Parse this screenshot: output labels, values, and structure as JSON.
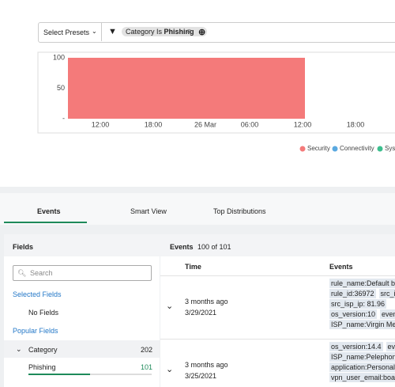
{
  "toolbar": {
    "presets": "Select Presets",
    "filter_key": "Category Is",
    "filter_value": "Phishing"
  },
  "chart_data": {
    "type": "bar",
    "series": [
      {
        "name": "Security",
        "color": "#f47a7a",
        "values": [
          100
        ]
      },
      {
        "name": "Connectivity",
        "color": "#5aa9e0",
        "values": [
          null
        ]
      },
      {
        "name": "Sys",
        "color": "#3cbf8e",
        "values": [
          null
        ]
      }
    ],
    "ylim": [
      0,
      100
    ],
    "yticks": [
      {
        "value": 0,
        "label": "-"
      },
      50,
      100
    ],
    "xticks": [
      "12:00",
      "18:00",
      "26 Mar",
      "06:00",
      "12:00",
      "18:00"
    ]
  },
  "tabs": [
    "Events",
    "Smart View",
    "Top Distributions"
  ],
  "fields": {
    "title": "Fields",
    "search": "Search",
    "selected": "Selected Fields",
    "none": "No Fields",
    "popular": "Popular Fields",
    "group": {
      "name": "Category",
      "count": 202
    },
    "item": {
      "name": "Phishing",
      "count": 101
    }
  },
  "events": {
    "title": "Events",
    "count": "100 of 101",
    "columns": [
      "Time",
      "Events"
    ],
    "rows": [
      {
        "ago": "3 months ago",
        "date": "3/29/2021",
        "tags": [
          [
            "rule_name:Default bl"
          ],
          [
            "rule_id:36972",
            "src_is"
          ],
          [
            "src_isp_ip: 81.96"
          ],
          [
            "os_version:10",
            "event_"
          ],
          [
            "ISP_name:Virgin Med"
          ]
        ]
      },
      {
        "ago": "3 months ago",
        "date": "3/25/2021",
        "tags": [
          [
            "os_version:14.4",
            "even"
          ],
          [
            "ISP_name:Pelephone"
          ],
          [
            "application:Personal"
          ],
          [
            "vpn_user_email:boaz"
          ]
        ]
      }
    ]
  }
}
